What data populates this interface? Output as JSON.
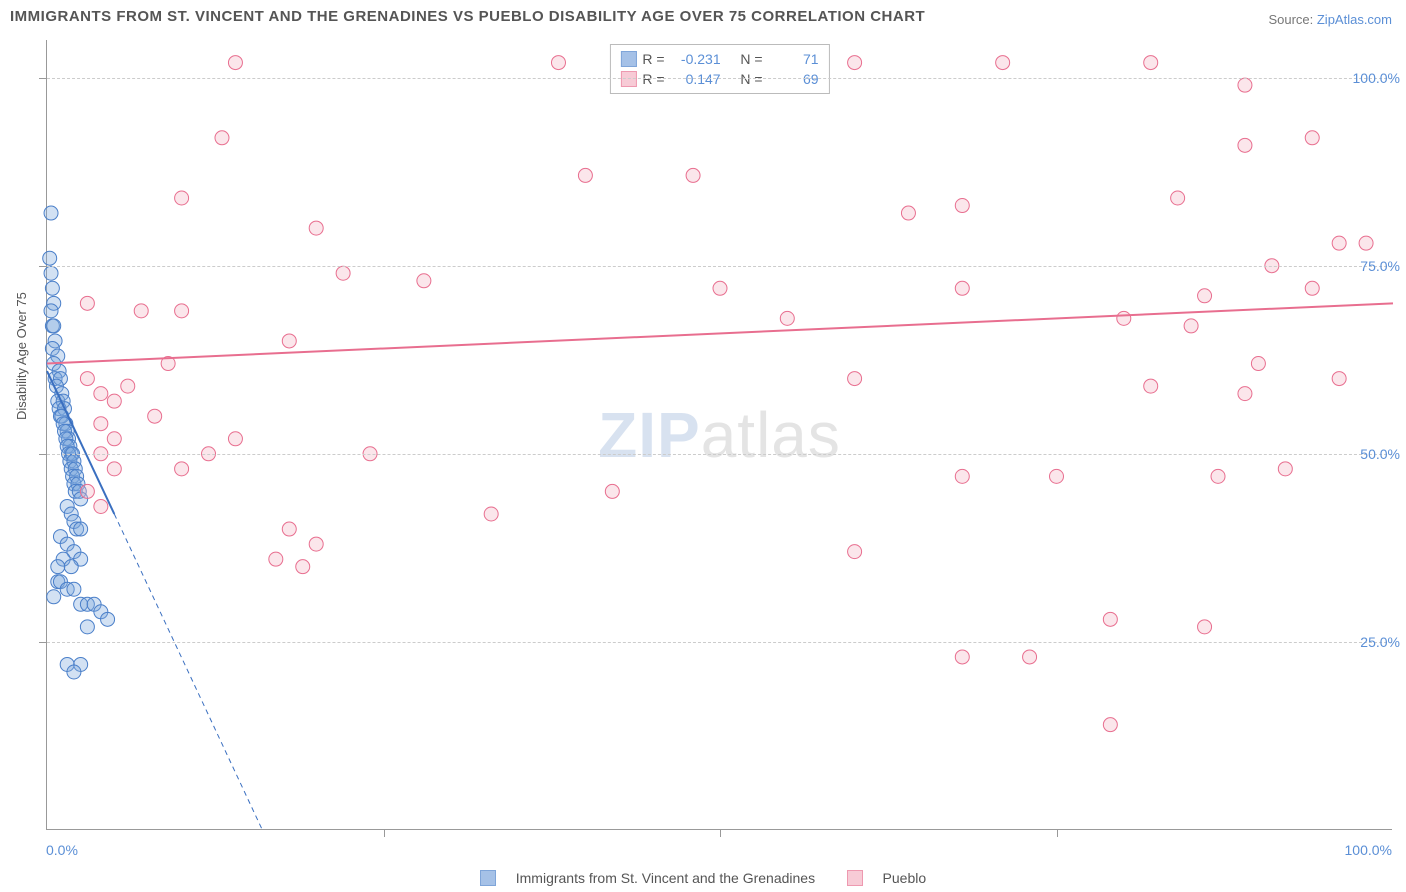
{
  "title": "IMMIGRANTS FROM ST. VINCENT AND THE GRENADINES VS PUEBLO DISABILITY AGE OVER 75 CORRELATION CHART",
  "source_prefix": "Source: ",
  "source_link": "ZipAtlas.com",
  "ylabel": "Disability Age Over 75",
  "watermark_a": "ZIP",
  "watermark_b": "atlas",
  "chart": {
    "type": "scatter",
    "xlim": [
      0,
      100
    ],
    "ylim": [
      0,
      105
    ],
    "x_ticks": [
      0,
      25,
      50,
      75,
      100
    ],
    "y_gridlines": [
      25,
      50,
      75,
      100
    ],
    "y_labels": [
      "25.0%",
      "50.0%",
      "75.0%",
      "100.0%"
    ],
    "x_origin_label": "0.0%",
    "x_max_label": "100.0%",
    "background_color": "#ffffff",
    "grid_color": "#cccccc",
    "marker_radius": 7,
    "marker_opacity": 0.35,
    "series": [
      {
        "name": "Immigrants from St. Vincent and the Grenadines",
        "color": "#7fa8dd",
        "stroke": "#4a7fc9",
        "R_label": "R =",
        "R": "-0.231",
        "N_label": "N =",
        "N": "71",
        "trend": {
          "x1": 0,
          "y1": 61,
          "x2": 5,
          "y2": 42,
          "dash_x2": 16,
          "dash_y2": 0,
          "width": 2,
          "color": "#3a6fc0"
        },
        "points": [
          [
            0.3,
            82
          ],
          [
            0.2,
            76
          ],
          [
            0.3,
            74
          ],
          [
            0.4,
            72
          ],
          [
            0.5,
            70
          ],
          [
            0.3,
            69
          ],
          [
            0.4,
            67
          ],
          [
            0.5,
            67
          ],
          [
            0.6,
            65
          ],
          [
            0.4,
            64
          ],
          [
            0.8,
            63
          ],
          [
            0.5,
            62
          ],
          [
            0.9,
            61
          ],
          [
            0.6,
            60
          ],
          [
            1.0,
            60
          ],
          [
            0.7,
            59
          ],
          [
            1.1,
            58
          ],
          [
            0.8,
            57
          ],
          [
            1.2,
            57
          ],
          [
            0.9,
            56
          ],
          [
            1.3,
            56
          ],
          [
            1.0,
            55
          ],
          [
            1.1,
            55
          ],
          [
            1.4,
            54
          ],
          [
            1.2,
            54
          ],
          [
            1.5,
            53
          ],
          [
            1.3,
            53
          ],
          [
            1.6,
            52
          ],
          [
            1.4,
            52
          ],
          [
            1.7,
            51
          ],
          [
            1.5,
            51
          ],
          [
            1.8,
            50
          ],
          [
            1.6,
            50
          ],
          [
            1.9,
            50
          ],
          [
            1.7,
            49
          ],
          [
            2.0,
            49
          ],
          [
            1.8,
            48
          ],
          [
            2.1,
            48
          ],
          [
            1.9,
            47
          ],
          [
            2.2,
            47
          ],
          [
            2.0,
            46
          ],
          [
            2.3,
            46
          ],
          [
            2.1,
            45
          ],
          [
            2.4,
            45
          ],
          [
            2.5,
            44
          ],
          [
            1.5,
            43
          ],
          [
            1.8,
            42
          ],
          [
            2.0,
            41
          ],
          [
            2.2,
            40
          ],
          [
            2.5,
            40
          ],
          [
            1.0,
            39
          ],
          [
            1.5,
            38
          ],
          [
            2.0,
            37
          ],
          [
            2.5,
            36
          ],
          [
            1.2,
            36
          ],
          [
            1.8,
            35
          ],
          [
            0.8,
            35
          ],
          [
            0.8,
            33
          ],
          [
            1.0,
            33
          ],
          [
            1.5,
            32
          ],
          [
            2.0,
            32
          ],
          [
            0.5,
            31
          ],
          [
            2.5,
            30
          ],
          [
            3.0,
            30
          ],
          [
            3.5,
            30
          ],
          [
            4.0,
            29
          ],
          [
            4.5,
            28
          ],
          [
            3.0,
            27
          ],
          [
            2.5,
            22
          ],
          [
            1.5,
            22
          ],
          [
            2.0,
            21
          ]
        ]
      },
      {
        "name": "Pueblo",
        "color": "#f4b6c5",
        "stroke": "#e86e8f",
        "R_label": "R =",
        "R": "0.147",
        "N_label": "N =",
        "N": "69",
        "trend": {
          "x1": 0,
          "y1": 62,
          "x2": 100,
          "y2": 70,
          "width": 2,
          "color": "#e86e8f"
        },
        "points": [
          [
            14,
            102
          ],
          [
            38,
            102
          ],
          [
            60,
            102
          ],
          [
            71,
            102
          ],
          [
            82,
            102
          ],
          [
            89,
            99
          ],
          [
            94,
            92
          ],
          [
            89,
            91
          ],
          [
            13,
            92
          ],
          [
            40,
            87
          ],
          [
            48,
            87
          ],
          [
            10,
            84
          ],
          [
            84,
            84
          ],
          [
            20,
            80
          ],
          [
            64,
            82
          ],
          [
            68,
            83
          ],
          [
            98,
            78
          ],
          [
            96,
            78
          ],
          [
            91,
            75
          ],
          [
            22,
            74
          ],
          [
            28,
            73
          ],
          [
            94,
            72
          ],
          [
            68,
            72
          ],
          [
            86,
            71
          ],
          [
            3,
            70
          ],
          [
            7,
            69
          ],
          [
            10,
            69
          ],
          [
            80,
            68
          ],
          [
            85,
            67
          ],
          [
            90,
            62
          ],
          [
            9,
            62
          ],
          [
            18,
            65
          ],
          [
            3,
            60
          ],
          [
            4,
            58
          ],
          [
            5,
            57
          ],
          [
            6,
            59
          ],
          [
            8,
            55
          ],
          [
            4,
            54
          ],
          [
            82,
            59
          ],
          [
            89,
            58
          ],
          [
            96,
            60
          ],
          [
            5,
            52
          ],
          [
            4,
            50
          ],
          [
            10,
            48
          ],
          [
            5,
            48
          ],
          [
            68,
            47
          ],
          [
            75,
            47
          ],
          [
            87,
            47
          ],
          [
            92,
            48
          ],
          [
            42,
            45
          ],
          [
            18,
            40
          ],
          [
            20,
            38
          ],
          [
            33,
            42
          ],
          [
            60,
            37
          ],
          [
            17,
            36
          ],
          [
            19,
            35
          ],
          [
            79,
            28
          ],
          [
            86,
            27
          ],
          [
            68,
            23
          ],
          [
            73,
            23
          ],
          [
            79,
            14
          ],
          [
            3,
            45
          ],
          [
            4,
            43
          ],
          [
            12,
            50
          ],
          [
            14,
            52
          ],
          [
            24,
            50
          ],
          [
            50,
            72
          ],
          [
            55,
            68
          ],
          [
            60,
            60
          ]
        ]
      }
    ]
  },
  "legend_bottom": {
    "series1": "Immigrants from St. Vincent and the Grenadines",
    "series2": "Pueblo"
  }
}
